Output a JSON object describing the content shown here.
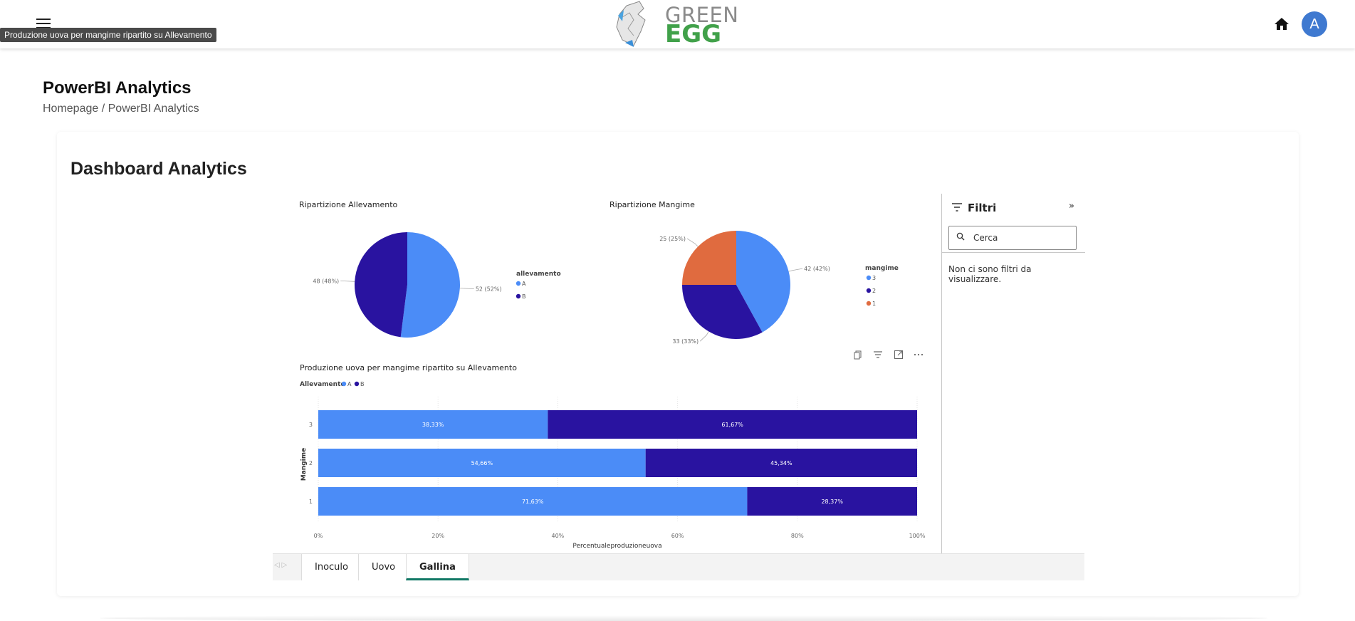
{
  "header": {
    "tooltip": "Produzione uova per mangime ripartito su Allevamento",
    "logo_line1": "GREEN",
    "logo_line2": "EGG",
    "avatar_initial": "A",
    "icons": {
      "menu": "hamburger-menu-icon",
      "home": "home-icon"
    }
  },
  "page": {
    "title": "PowerBI Analytics",
    "breadcrumb_home": "Homepage",
    "breadcrumb_sep": " / ",
    "breadcrumb_current": "PowerBI Analytics"
  },
  "card": {
    "title": "Dashboard Analytics"
  },
  "filters": {
    "title": "Filtri",
    "search_placeholder": "Cerca",
    "empty_message": "Non ci sono filtri da visualizzare."
  },
  "tabs": [
    {
      "label": "Inoculo"
    },
    {
      "label": "Uovo"
    },
    {
      "label": "Gallina",
      "active": true
    }
  ],
  "colors": {
    "lightBlue": "#4b8cf7",
    "darkBlue": "#2913a0",
    "orange": "#e06b3f",
    "tabAccent": "#117865"
  },
  "chart_data": [
    {
      "type": "pie",
      "title": "Ripartizione Allevamento",
      "legend_title": "allevamento",
      "categories": [
        "A",
        "B"
      ],
      "values": [
        52,
        48
      ],
      "labels": [
        "52 (52%)",
        "48 (48%)"
      ],
      "colors": [
        "#4b8cf7",
        "#2913a0"
      ]
    },
    {
      "type": "pie",
      "title": "Ripartizione Mangime",
      "legend_title": "mangime",
      "categories": [
        "3",
        "2",
        "1"
      ],
      "values": [
        42,
        33,
        25
      ],
      "labels": [
        "42 (42%)",
        "33 (33%)",
        "25 (25%)"
      ],
      "colors": [
        "#4b8cf7",
        "#2913a0",
        "#e06b3f"
      ]
    },
    {
      "type": "bar",
      "orientation": "horizontal-stacked-100",
      "title": "Produzione uova per mangime ripartito su Allevamento",
      "legend_title": "Allevamento",
      "ylabel": "Mangime",
      "xlabel": "Percentualeproduzioneuova",
      "categories": [
        "3",
        "2",
        "1"
      ],
      "series": [
        {
          "name": "A",
          "values": [
            38.33,
            54.66,
            71.63
          ],
          "labels": [
            "38,33%",
            "54,66%",
            "71,63%"
          ],
          "color": "#4b8cf7"
        },
        {
          "name": "B",
          "values": [
            61.67,
            45.34,
            28.37
          ],
          "labels": [
            "61,67%",
            "45,34%",
            "28,37%"
          ],
          "color": "#2913a0"
        }
      ],
      "xticks": [
        "0%",
        "20%",
        "40%",
        "60%",
        "80%",
        "100%"
      ],
      "xlim": [
        0,
        100
      ],
      "grid": true
    }
  ]
}
